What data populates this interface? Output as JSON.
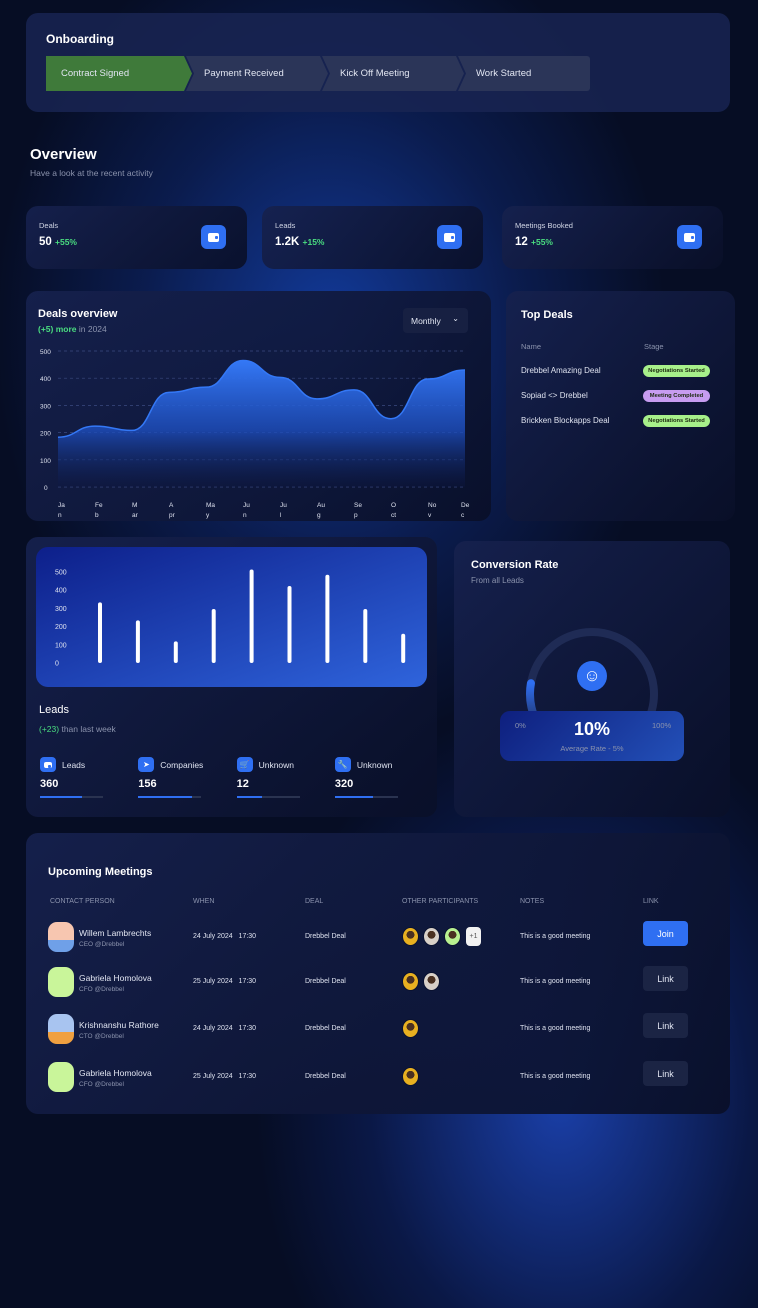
{
  "onboarding": {
    "title": "Onboarding",
    "steps": [
      {
        "label": "Contract Signed",
        "active": true
      },
      {
        "label": "Payment Received",
        "active": false
      },
      {
        "label": "Kick Off Meeting",
        "active": false
      },
      {
        "label": "Work Started",
        "active": false
      }
    ]
  },
  "overview": {
    "title": "Overview",
    "subtitle": "Have a look at the recent activity"
  },
  "stats": [
    {
      "label": "Deals",
      "value": "50",
      "change": "+55%",
      "icon": "wallet-icon"
    },
    {
      "label": "Leads",
      "value": "1.2K",
      "change": "+15%",
      "icon": "wallet-icon"
    },
    {
      "label": "Meetings Booked",
      "value": "12",
      "change": "+55%",
      "icon": "wallet-icon"
    }
  ],
  "deals_overview": {
    "title": "Deals overview",
    "highlight": "(+5) more",
    "suffix": "in 2024",
    "period": "Monthly"
  },
  "top_deals": {
    "title": "Top Deals",
    "col_name": "Name",
    "col_stage": "Stage",
    "rows": [
      {
        "name": "Drebbel Amazing Deal",
        "stage": "Negotiations Started",
        "color": "#a7f08a"
      },
      {
        "name": "Sopiad <> Drebbel",
        "stage": "Meeting Completed",
        "color": "#c79cf0"
      },
      {
        "name": "Brickken Blockapps Deal",
        "stage": "Negotiations Started",
        "color": "#a7f08a"
      }
    ]
  },
  "leads": {
    "title": "Leads",
    "highlight": "(+23)",
    "suffix": "than last week",
    "items": [
      {
        "label": "Leads",
        "value": "360",
        "progress": 0.66,
        "icon": "wallet-icon"
      },
      {
        "label": "Companies",
        "value": "156",
        "progress": 0.85,
        "icon": "rocket-icon"
      },
      {
        "label": "Unknown",
        "value": "12",
        "progress": 0.4,
        "icon": "cart-icon"
      },
      {
        "label": "Unknown",
        "value": "320",
        "progress": 0.6,
        "icon": "wrench-icon"
      }
    ]
  },
  "conversion": {
    "title": "Conversion Rate",
    "subtitle": "From all Leads",
    "value": "10%",
    "min": "0%",
    "max": "100%",
    "average": "Average Rate - 5%",
    "progress": 0.1,
    "icon": "smile-icon"
  },
  "meetings": {
    "title": "Upcoming Meetings",
    "headers": [
      "CONTACT PERSON",
      "WHEN",
      "DEAL",
      "OTHER PARTICIPANTS",
      "NOTES",
      "LINK"
    ],
    "rows": [
      {
        "name": "Willem Lambrechts",
        "role": "CEO @Drebbel",
        "date": "24 July 2024",
        "time": "17:30",
        "deal": "Drebbel Deal",
        "participants": 3,
        "extra": "+1",
        "notes": "This is a good meeting",
        "link": "Join",
        "primary": true
      },
      {
        "name": "Gabriela Homolova",
        "role": "CFO @Drebbel",
        "date": "25 July 2024",
        "time": "17:30",
        "deal": "Drebbel Deal",
        "participants": 2,
        "notes": "This is a good meeting",
        "link": "Link",
        "primary": false
      },
      {
        "name": "Krishnanshu Rathore",
        "role": "CTO @Drebbel",
        "date": "24 July 2024",
        "time": "17:30",
        "deal": "Drebbel Deal",
        "participants": 1,
        "notes": "This is a good meeting",
        "link": "Link",
        "primary": false
      },
      {
        "name": "Gabriela Homolova",
        "role": "CFO @Drebbel",
        "date": "25 July 2024",
        "time": "17:30",
        "deal": "Drebbel Deal",
        "participants": 1,
        "notes": "This is a good meeting",
        "link": "Link",
        "primary": false
      }
    ]
  },
  "chart_data": [
    {
      "type": "area",
      "categories": [
        "Jan",
        "Feb",
        "Mar",
        "Apr",
        "May",
        "Jun",
        "Jul",
        "Aug",
        "Sep",
        "Oct",
        "Nov",
        "Dec"
      ],
      "values": [
        183,
        224,
        208,
        348,
        367,
        465,
        403,
        324,
        357,
        251,
        397,
        430
      ],
      "ylim": [
        0,
        500
      ],
      "yticks": [
        "500",
        "400",
        "300",
        "200",
        "100",
        "0"
      ],
      "grid": true,
      "color": "#3478f6"
    },
    {
      "type": "bar",
      "values": [
        333,
        234,
        119,
        297,
        514,
        423,
        485,
        297,
        161
      ],
      "ylim": [
        0,
        500
      ],
      "yticks": [
        "500",
        "400",
        "300",
        "200",
        "100",
        "0"
      ],
      "grid": false,
      "color": "#ffffff"
    }
  ]
}
